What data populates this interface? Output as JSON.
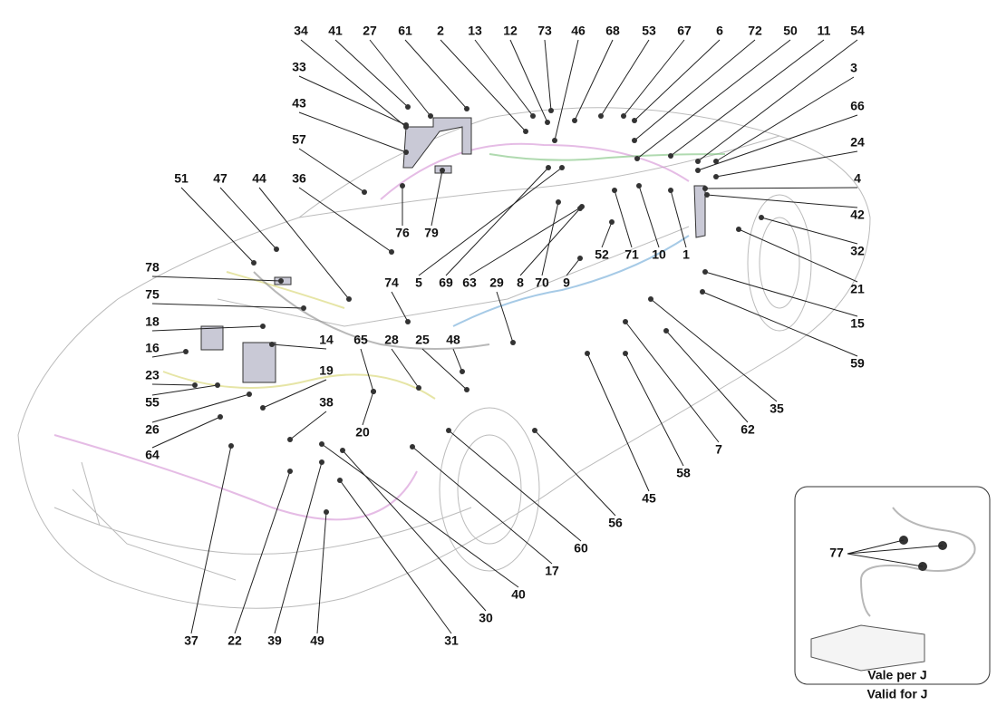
{
  "callouts": [
    "34",
    "41",
    "27",
    "61",
    "2",
    "13",
    "12",
    "73",
    "46",
    "68",
    "53",
    "67",
    "6",
    "72",
    "50",
    "11",
    "54",
    "33",
    "43",
    "57",
    "51",
    "47",
    "44",
    "36",
    "3",
    "66",
    "24",
    "4",
    "42",
    "32",
    "21",
    "15",
    "59",
    "76",
    "79",
    "52",
    "71",
    "10",
    "1",
    "74",
    "5",
    "69",
    "63",
    "29",
    "8",
    "70",
    "9",
    "78",
    "75",
    "18",
    "16",
    "23",
    "55",
    "26",
    "64",
    "14",
    "65",
    "28",
    "25",
    "48",
    "19",
    "38",
    "20",
    "37",
    "22",
    "39",
    "49",
    "31",
    "30",
    "40",
    "17",
    "60",
    "56",
    "45",
    "58",
    "7",
    "62",
    "35"
  ],
  "inset": {
    "callout": "77",
    "note_it": "Vale per J",
    "note_en": "Valid for J"
  }
}
